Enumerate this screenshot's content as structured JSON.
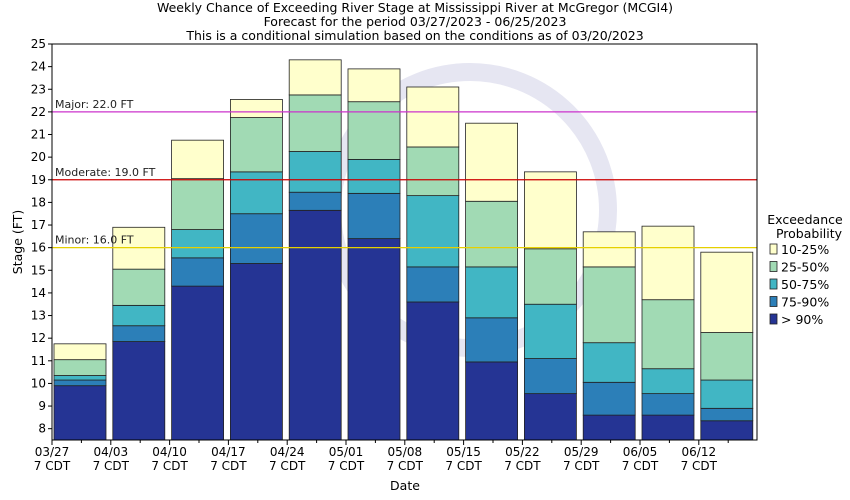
{
  "chart_data": {
    "type": "bar",
    "stacked": true,
    "title_lines": [
      "Weekly Chance of Exceeding River Stage at Mississippi River at McGregor (MCGI4)",
      "Forecast for the period 03/27/2023 - 06/25/2023",
      "This is a conditional simulation based on the conditions as of 03/20/2023"
    ],
    "xlabel": "Date",
    "ylabel": "Stage (FT)",
    "ylim": [
      7.5,
      25
    ],
    "yticks": [
      8,
      9,
      10,
      11,
      12,
      13,
      14,
      15,
      16,
      17,
      18,
      19,
      20,
      21,
      22,
      23,
      24,
      25
    ],
    "x_ticks": [
      {
        "date": "03/27",
        "tz": "7 CDT"
      },
      {
        "date": "04/03",
        "tz": "7 CDT"
      },
      {
        "date": "04/10",
        "tz": "7 CDT"
      },
      {
        "date": "04/17",
        "tz": "7 CDT"
      },
      {
        "date": "04/24",
        "tz": "7 CDT"
      },
      {
        "date": "05/01",
        "tz": "7 CDT"
      },
      {
        "date": "05/08",
        "tz": "7 CDT"
      },
      {
        "date": "05/15",
        "tz": "7 CDT"
      },
      {
        "date": "05/22",
        "tz": "7 CDT"
      },
      {
        "date": "05/29",
        "tz": "7 CDT"
      },
      {
        "date": "06/05",
        "tz": "7 CDT"
      },
      {
        "date": "06/12",
        "tz": "7 CDT"
      }
    ],
    "legend": {
      "title_lines": [
        "Exceedance",
        "Probability"
      ],
      "placement": "right",
      "entries": [
        {
          "label": "10-25%",
          "color": "#ffffcc"
        },
        {
          "label": "25-50%",
          "color": "#a1dab4"
        },
        {
          "label": "50-75%",
          "color": "#41b6c4"
        },
        {
          "label": "75-90%",
          "color": "#2c7fb8"
        },
        {
          "label": "> 90%",
          "color": "#253494"
        }
      ]
    },
    "flood_stages": [
      {
        "label": "Major: 22.0 FT",
        "value": 22.0,
        "color": "#cc33cc"
      },
      {
        "label": "Moderate: 19.0 FT",
        "value": 19.0,
        "color": "#cc0000"
      },
      {
        "label": "Minor: 16.0 FT",
        "value": 16.0,
        "color": "#e6d000"
      }
    ],
    "bars": [
      {
        "levels": [
          9.9,
          10.15,
          10.35,
          11.05,
          11.75
        ]
      },
      {
        "levels": [
          11.85,
          12.55,
          13.45,
          15.05,
          16.9
        ]
      },
      {
        "levels": [
          14.3,
          15.55,
          16.8,
          19.05,
          20.75
        ]
      },
      {
        "levels": [
          15.3,
          17.5,
          19.35,
          21.75,
          22.55
        ]
      },
      {
        "levels": [
          17.65,
          18.45,
          20.25,
          22.75,
          24.3
        ]
      },
      {
        "levels": [
          16.4,
          18.4,
          19.9,
          22.45,
          23.9
        ]
      },
      {
        "levels": [
          13.6,
          15.15,
          18.3,
          20.45,
          23.1
        ]
      },
      {
        "levels": [
          10.95,
          12.9,
          15.15,
          18.05,
          21.5
        ]
      },
      {
        "levels": [
          9.55,
          11.1,
          13.5,
          15.95,
          19.35
        ]
      },
      {
        "levels": [
          8.6,
          10.05,
          11.8,
          15.15,
          16.7
        ]
      },
      {
        "levels": [
          8.6,
          9.55,
          10.65,
          13.7,
          16.95
        ]
      },
      {
        "levels": [
          8.35,
          8.9,
          10.15,
          12.25,
          15.8
        ]
      }
    ]
  }
}
